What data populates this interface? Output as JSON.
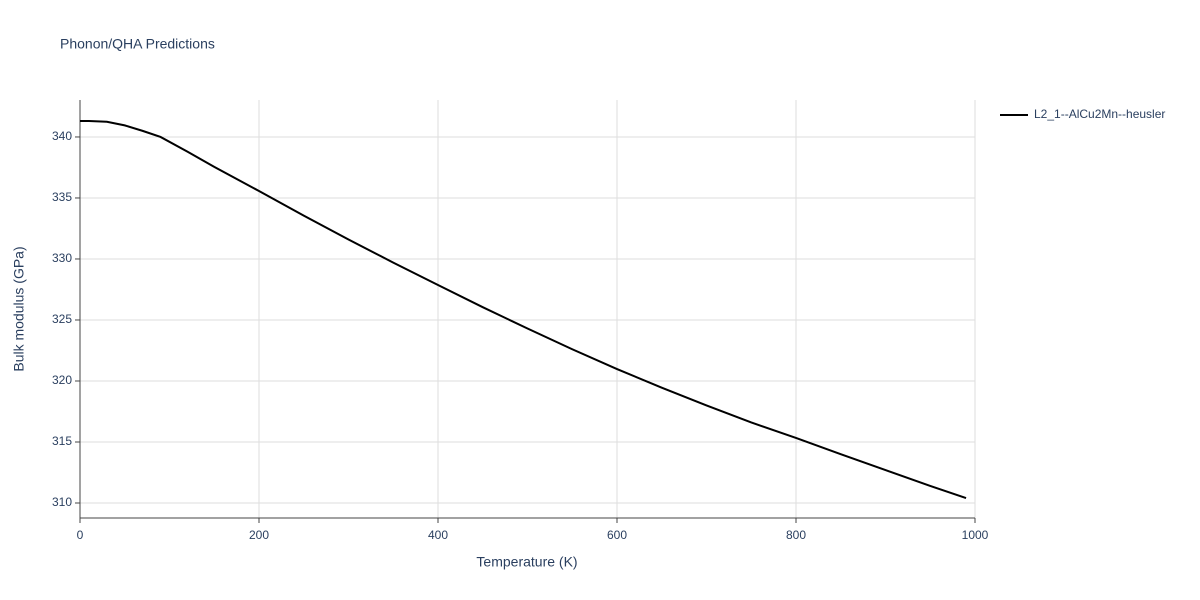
{
  "chart_data": {
    "type": "line",
    "title": "Phonon/QHA Predictions",
    "x_label": "Temperature (K)",
    "y_label": "Bulk modulus (GPa)",
    "x": [
      0,
      10,
      30,
      50,
      70,
      90,
      120,
      150,
      200,
      250,
      300,
      350,
      400,
      450,
      500,
      550,
      600,
      650,
      700,
      750,
      800,
      850,
      900,
      950,
      990
    ],
    "series": [
      {
        "name": "L2_1--AlCu2Mn--heusler",
        "color": "#000000",
        "values": [
          341.31,
          341.31,
          341.25,
          340.95,
          340.5,
          340.0,
          338.8,
          337.55,
          335.57,
          333.55,
          331.6,
          329.7,
          327.87,
          326.05,
          324.3,
          322.6,
          320.98,
          319.45,
          318.0,
          316.6,
          315.33,
          314.0,
          312.7,
          311.4,
          310.4
        ]
      }
    ],
    "xlim": [
      0,
      1000
    ],
    "xticks": [
      0,
      200,
      400,
      600,
      800,
      1000
    ],
    "ylim": [
      308.77,
      343.03
    ],
    "yticks": [
      310,
      315,
      320,
      325,
      330,
      335,
      340
    ],
    "grid": true,
    "legend": "right"
  }
}
